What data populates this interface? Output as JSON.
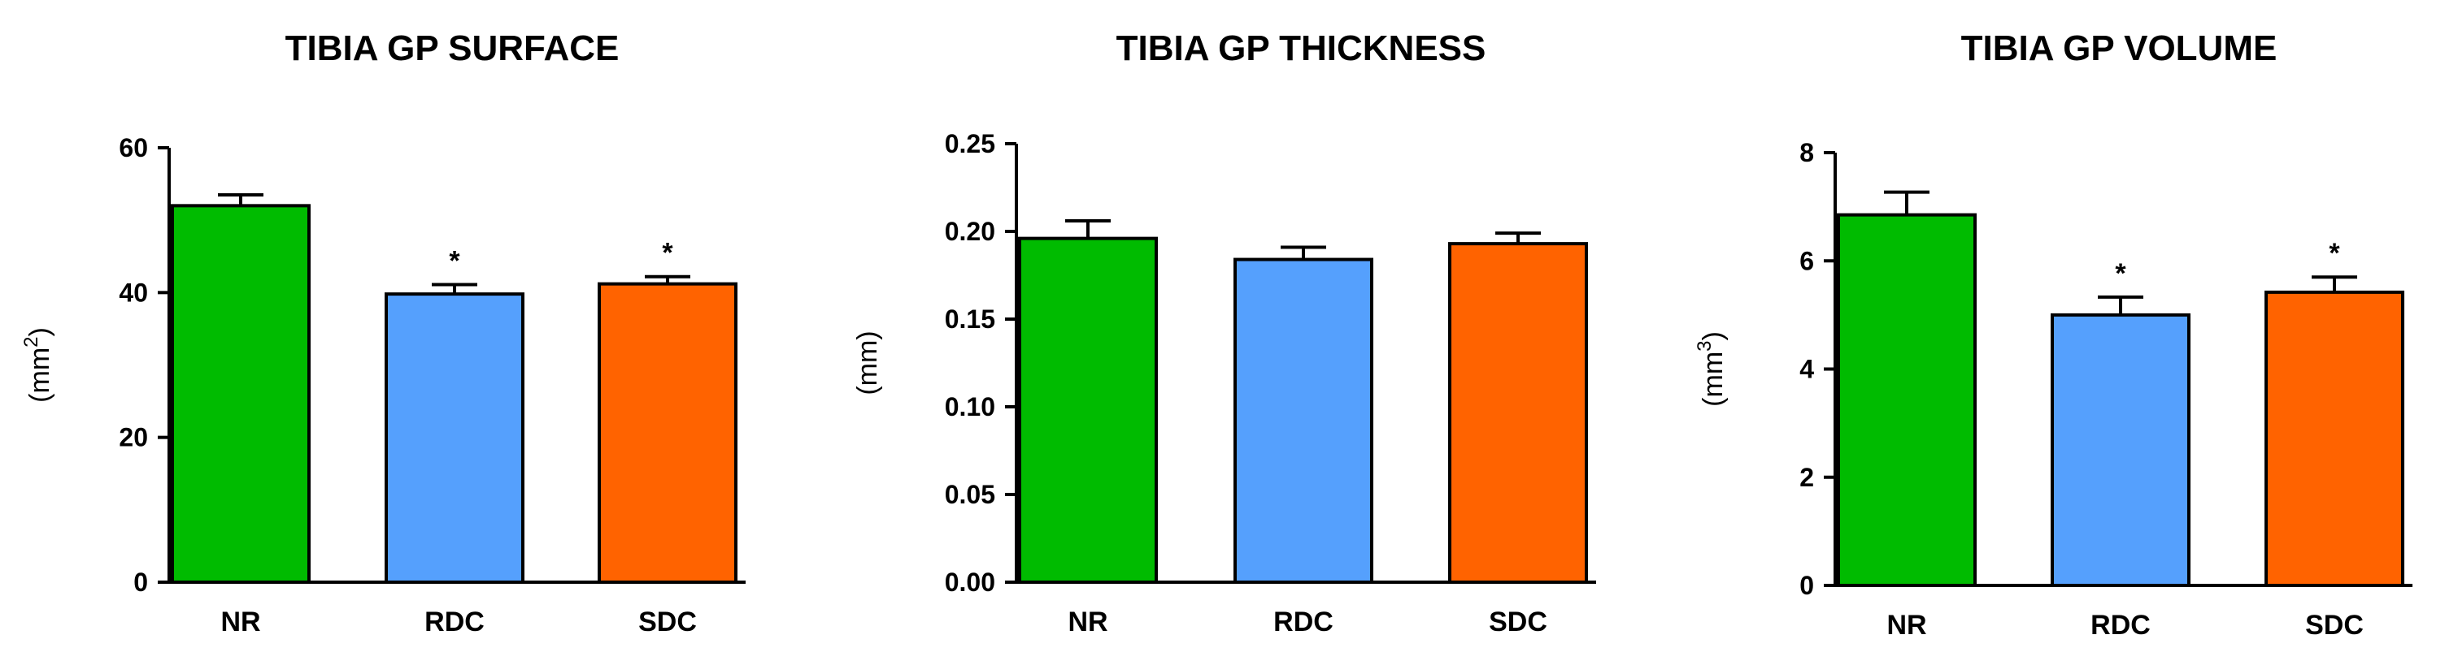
{
  "chart_data": [
    {
      "type": "bar",
      "title": "TIBIA GP SURFACE",
      "ylabel": "(mm2)",
      "ylabel_main": "(mm",
      "ylabel_sup": "2",
      "ylabel_close": ")",
      "categories": [
        "NR",
        "RDC",
        "SDC"
      ],
      "values": [
        52.0,
        39.8,
        41.2
      ],
      "errors": [
        1.5,
        1.3,
        1.0
      ],
      "significance": [
        "",
        "*",
        "*"
      ],
      "colors": [
        "#00bb00",
        "#55a0fd",
        "#ff6300"
      ],
      "ylim": [
        0,
        60
      ],
      "yticks": [
        "0",
        "20",
        "40",
        "60"
      ],
      "ytick_values": [
        0,
        20,
        40,
        60
      ]
    },
    {
      "type": "bar",
      "title": "TIBIA GP THICKNESS",
      "ylabel": "(mm)",
      "ylabel_main": "(mm)",
      "ylabel_sup": "",
      "ylabel_close": "",
      "categories": [
        "NR",
        "RDC",
        "SDC"
      ],
      "values": [
        0.196,
        0.184,
        0.193
      ],
      "errors": [
        0.01,
        0.007,
        0.006
      ],
      "significance": [
        "",
        "",
        ""
      ],
      "colors": [
        "#00bb00",
        "#55a0fd",
        "#ff6300"
      ],
      "ylim": [
        0,
        0.25
      ],
      "yticks": [
        "0.00",
        "0.05",
        "0.10",
        "0.15",
        "0.20",
        "0.25"
      ],
      "ytick_values": [
        0,
        0.05,
        0.1,
        0.15,
        0.2,
        0.25
      ]
    },
    {
      "type": "bar",
      "title": "TIBIA GP VOLUME",
      "ylabel": "(mm3)",
      "ylabel_main": "(mm",
      "ylabel_sup": "3",
      "ylabel_close": ")",
      "categories": [
        "NR",
        "RDC",
        "SDC"
      ],
      "values": [
        6.85,
        5.0,
        5.42
      ],
      "errors": [
        0.42,
        0.33,
        0.28
      ],
      "significance": [
        "",
        "*",
        "*"
      ],
      "colors": [
        "#00bb00",
        "#55a0fd",
        "#ff6300"
      ],
      "ylim": [
        0,
        8
      ],
      "yticks": [
        "0",
        "2",
        "4",
        "6",
        "8"
      ],
      "ytick_values": [
        0,
        2,
        4,
        6,
        8
      ]
    }
  ]
}
